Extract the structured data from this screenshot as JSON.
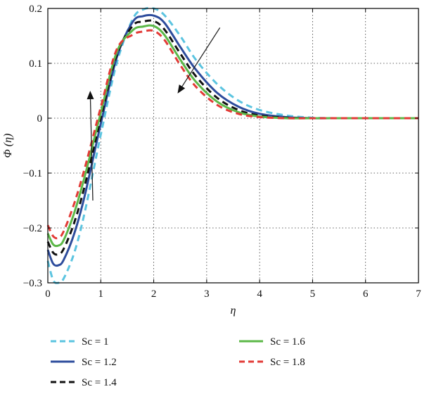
{
  "chart_data": {
    "type": "line",
    "xlabel": "η",
    "ylabel": "Φ (η)",
    "xlim": [
      0,
      7
    ],
    "ylim": [
      -0.3,
      0.2
    ],
    "xticks": [
      0,
      1,
      2,
      3,
      4,
      5,
      6,
      7
    ],
    "yticks": [
      -0.3,
      -0.2,
      -0.1,
      0,
      0.1,
      0.2
    ],
    "xtick_labels": [
      "0",
      "1",
      "2",
      "3",
      "4",
      "5",
      "6",
      "7"
    ],
    "ytick_labels": [
      "−0.3",
      "−0.2",
      "−0.1",
      "0",
      "0.1",
      "0.2"
    ],
    "grid": true,
    "legend_position": "below",
    "x": [
      0,
      0.1,
      0.2,
      0.3,
      0.5,
      0.7,
      1.0,
      1.3,
      1.6,
      1.8,
      2.0,
      2.2,
      2.5,
      2.8,
      3.2,
      3.6,
      4.0,
      4.5,
      5.0,
      5.5,
      6.0,
      7.0
    ],
    "series": [
      {
        "name": "Sc = 1",
        "color": "#5bc4e0",
        "dash": "dashed",
        "values": [
          -0.26,
          -0.295,
          -0.3,
          -0.292,
          -0.245,
          -0.17,
          -0.03,
          0.1,
          0.18,
          0.198,
          0.2,
          0.188,
          0.15,
          0.106,
          0.062,
          0.032,
          0.015,
          0.005,
          0.001,
          0.0,
          0.0,
          0.0
        ]
      },
      {
        "name": "Sc = 1.2",
        "color": "#2d4c9c",
        "dash": "solid",
        "values": [
          -0.24,
          -0.265,
          -0.268,
          -0.258,
          -0.21,
          -0.14,
          -0.01,
          0.11,
          0.175,
          0.186,
          0.187,
          0.174,
          0.13,
          0.088,
          0.046,
          0.021,
          0.008,
          0.002,
          0.0,
          0.0,
          0.0,
          0.0
        ]
      },
      {
        "name": "Sc = 1.4",
        "color": "#111111",
        "dash": "dashed",
        "values": [
          -0.225,
          -0.245,
          -0.248,
          -0.238,
          -0.19,
          -0.122,
          0.0,
          0.115,
          0.168,
          0.176,
          0.177,
          0.162,
          0.118,
          0.076,
          0.037,
          0.015,
          0.005,
          0.001,
          0.0,
          0.0,
          0.0,
          0.0
        ]
      },
      {
        "name": "Sc = 1.6",
        "color": "#5cb848",
        "dash": "solid",
        "values": [
          -0.21,
          -0.23,
          -0.232,
          -0.222,
          -0.172,
          -0.105,
          0.01,
          0.12,
          0.16,
          0.167,
          0.168,
          0.152,
          0.107,
          0.066,
          0.03,
          0.011,
          0.003,
          0.0,
          0.0,
          0.0,
          0.0,
          0.0
        ]
      },
      {
        "name": "Sc = 1.8",
        "color": "#e23a36",
        "dash": "dashed",
        "values": [
          -0.195,
          -0.215,
          -0.218,
          -0.206,
          -0.155,
          -0.09,
          0.02,
          0.125,
          0.152,
          0.158,
          0.159,
          0.143,
          0.097,
          0.057,
          0.024,
          0.008,
          0.002,
          0.0,
          0.0,
          0.0,
          0.0,
          0.0
        ]
      }
    ],
    "annotations": [
      {
        "type": "arrow",
        "x1": 0.85,
        "y1": -0.15,
        "x2": 0.8,
        "y2": 0.05
      },
      {
        "type": "arrow",
        "x1": 3.25,
        "y1": 0.165,
        "x2": 2.45,
        "y2": 0.045
      }
    ]
  }
}
